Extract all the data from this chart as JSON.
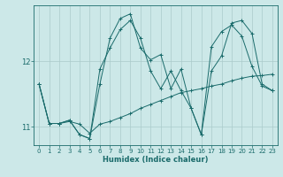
{
  "xlabel": "Humidex (Indice chaleur)",
  "ylabel": "",
  "bg_color": "#cce8e8",
  "line_color": "#1a6b6b",
  "grid_color": "#aacaca",
  "xlim": [
    -0.5,
    23.5
  ],
  "ylim": [
    10.72,
    12.85
  ],
  "yticks": [
    11,
    12
  ],
  "xticks": [
    0,
    1,
    2,
    3,
    4,
    5,
    6,
    7,
    8,
    9,
    10,
    11,
    12,
    13,
    14,
    15,
    16,
    17,
    18,
    19,
    20,
    21,
    22,
    23
  ],
  "series1_x": [
    0,
    1,
    2,
    3,
    4,
    5,
    6,
    7,
    8,
    9,
    10,
    11,
    12,
    13,
    14,
    15,
    16,
    17,
    18,
    19,
    20,
    21,
    22,
    23
  ],
  "series1_y": [
    11.65,
    11.05,
    11.05,
    11.08,
    11.04,
    10.9,
    11.04,
    11.08,
    11.14,
    11.2,
    11.28,
    11.34,
    11.4,
    11.46,
    11.52,
    11.55,
    11.58,
    11.62,
    11.65,
    11.7,
    11.74,
    11.77,
    11.78,
    11.8
  ],
  "series2_x": [
    0,
    1,
    2,
    3,
    4,
    5,
    6,
    7,
    8,
    9,
    10,
    11,
    12,
    13,
    14,
    15,
    16,
    17,
    18,
    19,
    20,
    21,
    22,
    23
  ],
  "series2_y": [
    11.65,
    11.05,
    11.05,
    11.1,
    10.88,
    10.82,
    11.88,
    12.2,
    12.48,
    12.62,
    12.35,
    11.85,
    11.58,
    11.85,
    11.55,
    11.28,
    10.88,
    12.22,
    12.45,
    12.55,
    12.38,
    11.92,
    11.62,
    11.55
  ],
  "series3_x": [
    0,
    1,
    2,
    3,
    4,
    5,
    6,
    7,
    8,
    9,
    10,
    11,
    12,
    13,
    14,
    15,
    16,
    17,
    18,
    19,
    20,
    21,
    22,
    23
  ],
  "series3_y": [
    11.65,
    11.05,
    11.05,
    11.1,
    10.88,
    10.82,
    11.65,
    12.35,
    12.65,
    12.72,
    12.2,
    12.02,
    12.1,
    11.58,
    11.88,
    11.28,
    10.88,
    11.85,
    12.08,
    12.58,
    12.62,
    12.42,
    11.65,
    11.55
  ],
  "figsize": [
    3.2,
    2.0
  ],
  "dpi": 100
}
